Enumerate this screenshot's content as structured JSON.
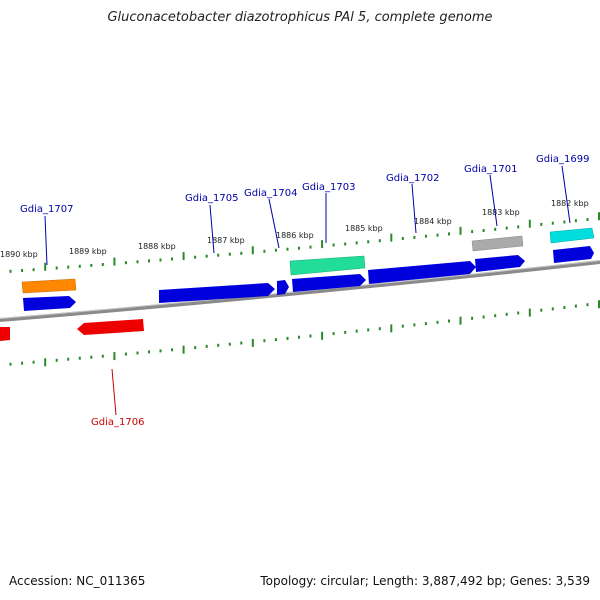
{
  "title": "Gluconacetobacter diazotrophicus PAl 5, complete genome",
  "footer": {
    "accession": "Accession: NC_011365",
    "topology": "Topology: circular; Length: 3,887,492 bp; Genes: 3,539"
  },
  "colors": {
    "forward": "#0000dd",
    "reverse": "#ee0000",
    "backbone": "#888888",
    "tick": "#2a8a2a",
    "label_forward": "#0000aa",
    "label_reverse": "#cc0000"
  },
  "kbp_ticks": [
    {
      "kbp": 1882,
      "label": "1882 kbp"
    },
    {
      "kbp": 1883,
      "label": "1883 kbp"
    },
    {
      "kbp": 1884,
      "label": "1884 kbp"
    },
    {
      "kbp": 1885,
      "label": "1885 kbp"
    },
    {
      "kbp": 1886,
      "label": "1886 kbp"
    },
    {
      "kbp": 1887,
      "label": "1887 kbp"
    },
    {
      "kbp": 1888,
      "label": "1888 kbp"
    },
    {
      "kbp": 1889,
      "label": "1889 kbp"
    },
    {
      "kbp": 1890,
      "label": "1890 kbp"
    }
  ],
  "genes": [
    {
      "name": "Gdia_1699",
      "strand": "forward",
      "fill": "#00dddd"
    },
    {
      "name": "Gdia_1701",
      "strand": "forward",
      "fill": "#aaaaaa"
    },
    {
      "name": "Gdia_1702",
      "strand": "forward",
      "fill": "#0000dd"
    },
    {
      "name": "Gdia_1703",
      "strand": "forward",
      "fill": "#22dd99"
    },
    {
      "name": "Gdia_1704",
      "strand": "forward",
      "fill": "#0000dd"
    },
    {
      "name": "Gdia_1705",
      "strand": "forward",
      "fill": "#0000dd"
    },
    {
      "name": "Gdia_1706",
      "strand": "reverse",
      "fill": "#ee0000"
    },
    {
      "name": "Gdia_1707",
      "strand": "forward",
      "fill": "#ff8800"
    }
  ]
}
